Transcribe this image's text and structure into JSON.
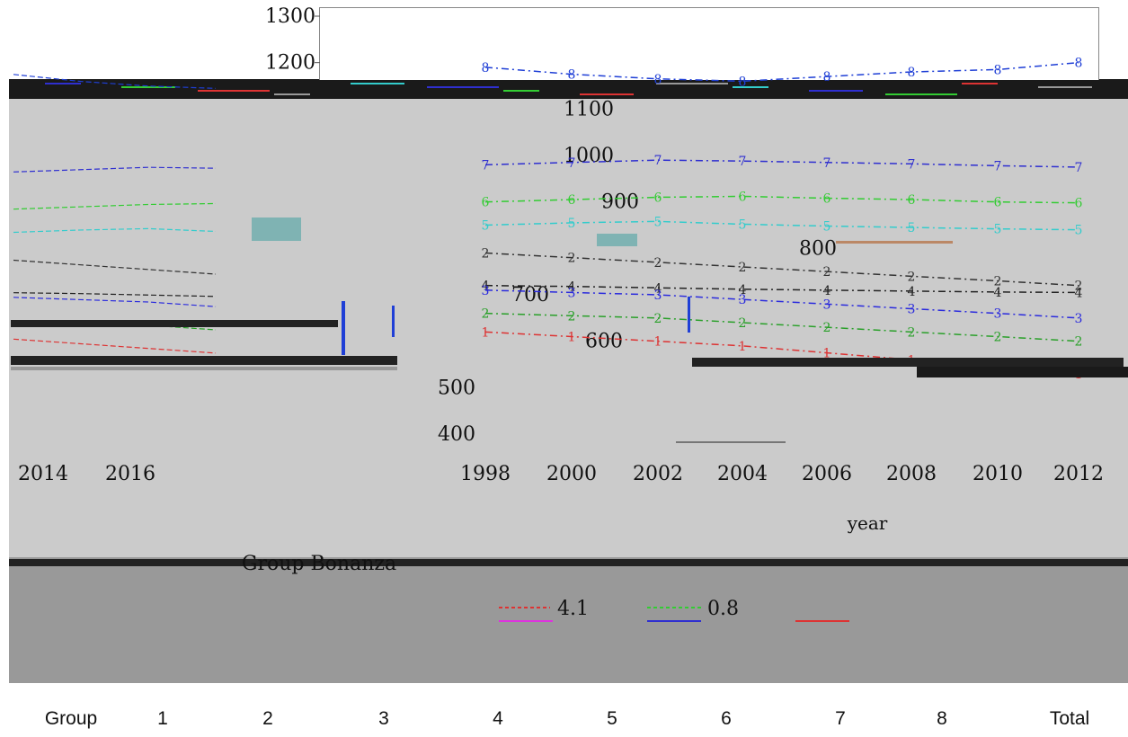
{
  "chart_data": {
    "type": "line",
    "title": "",
    "xlabel": "year",
    "ylabel": "",
    "ylim": [
      400,
      1300
    ],
    "y_ticks": [
      "400",
      "500",
      "600",
      "700",
      "800",
      "900",
      "1000",
      "1100",
      "1200",
      "1300"
    ],
    "x_ticks_left": [
      "2014",
      "2016"
    ],
    "x_ticks": [
      "1998",
      "2000",
      "2002",
      "2004",
      "2006",
      "2008",
      "2010",
      "2012"
    ],
    "x": [
      1998,
      2000,
      2002,
      2004,
      2006,
      2008,
      2010,
      2012
    ],
    "series": [
      {
        "marker": "8",
        "color": "#1f3fd6",
        "values": [
          1190,
          1175,
          1165,
          1160,
          1170,
          1180,
          1185,
          1200
        ]
      },
      {
        "marker": "7",
        "color": "#2f2fd0",
        "values": [
          980,
          985,
          990,
          988,
          985,
          982,
          978,
          975
        ]
      },
      {
        "marker": "6",
        "color": "#33cc33",
        "values": [
          900,
          905,
          910,
          912,
          908,
          905,
          900,
          898
        ]
      },
      {
        "marker": "5",
        "color": "#33cccc",
        "values": [
          850,
          855,
          858,
          852,
          848,
          845,
          842,
          840
        ]
      },
      {
        "marker": "2",
        "color": "#333333",
        "values": [
          790,
          780,
          770,
          760,
          750,
          740,
          730,
          720
        ]
      },
      {
        "marker": "4",
        "color": "#222222",
        "values": [
          720,
          718,
          715,
          712,
          710,
          708,
          706,
          705
        ]
      },
      {
        "marker": "3",
        "color": "#2b2bdd",
        "values": [
          710,
          705,
          700,
          690,
          680,
          670,
          660,
          650
        ]
      },
      {
        "marker": "2",
        "color": "#2aa02a",
        "values": [
          660,
          655,
          650,
          640,
          630,
          620,
          610,
          600
        ]
      },
      {
        "marker": "1",
        "color": "#dd3333",
        "values": [
          620,
          610,
          600,
          590,
          575,
          560,
          545,
          530
        ]
      }
    ],
    "legend": {
      "title": "Group Bonanza",
      "values": [
        "4.1",
        "0.8"
      ]
    }
  },
  "group_row": {
    "labels": [
      "Group",
      "1",
      "2",
      "3",
      "4",
      "5",
      "6",
      "7",
      "8",
      "Total"
    ]
  }
}
